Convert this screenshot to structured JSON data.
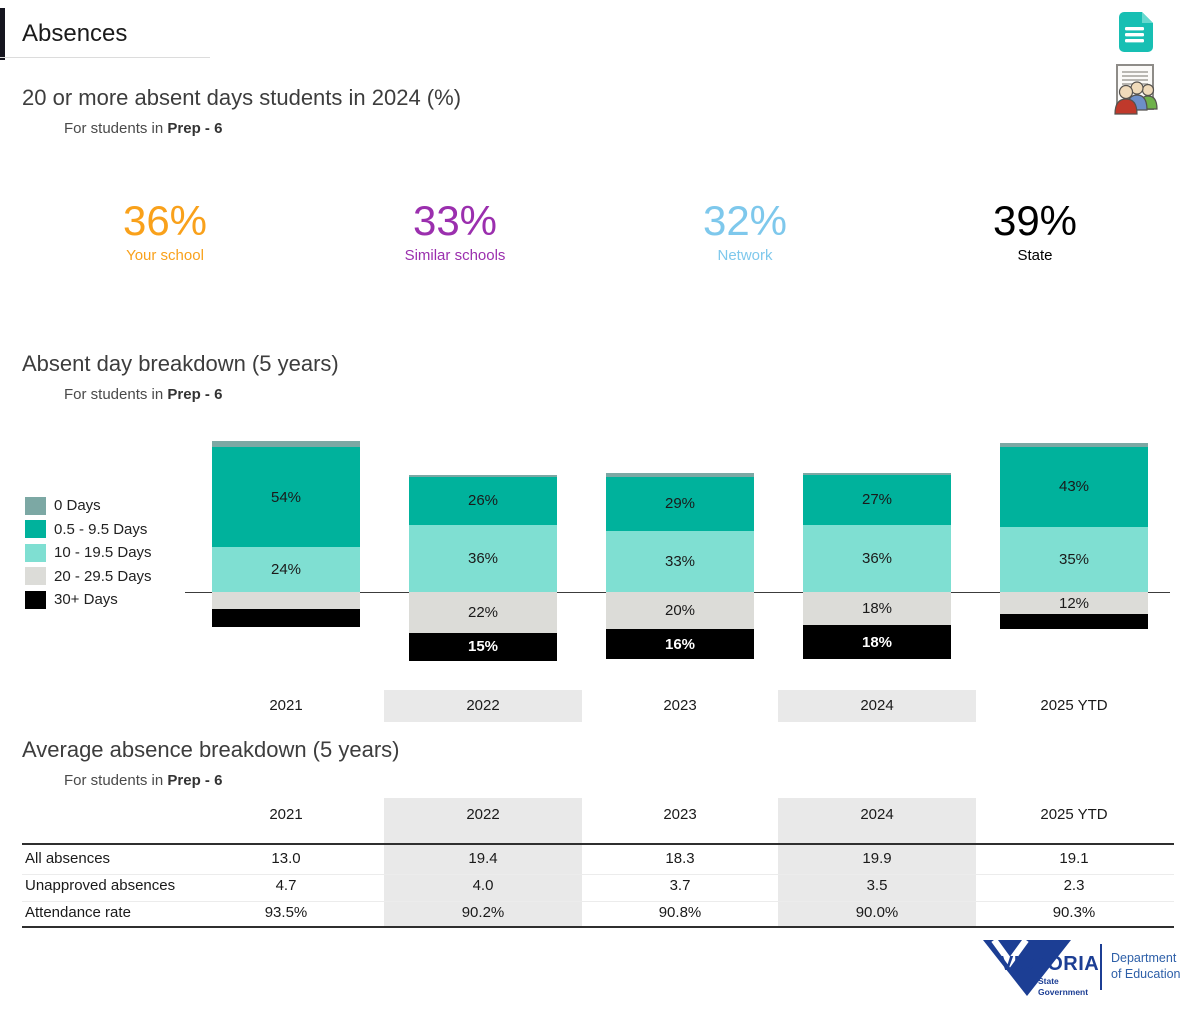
{
  "page": {
    "title": "Absences"
  },
  "icons": {
    "report_icon": "teal-document-icon",
    "cohort_icon": "report-with-people-icon"
  },
  "section1": {
    "title": "20 or more absent days students in 2024 (%)",
    "subtitle_prefix": "For students in",
    "subtitle_bold": "Prep - 6",
    "stats": [
      {
        "value": "36%",
        "label": "Your school",
        "color": "#F9A11B"
      },
      {
        "value": "33%",
        "label": "Similar schools",
        "color": "#9B2FAE"
      },
      {
        "value": "32%",
        "label": "Network",
        "color": "#7EC8EC"
      },
      {
        "value": "39%",
        "label": "State",
        "color": "#000000"
      }
    ]
  },
  "section2": {
    "title": "Absent day breakdown (5 years)",
    "subtitle_prefix": "For students in",
    "subtitle_bold": "Prep - 6"
  },
  "section3": {
    "title": "Average absence breakdown (5 years)",
    "subtitle_prefix": "For students in",
    "subtitle_bold": "Prep - 6"
  },
  "chart_data": [
    {
      "type": "bar",
      "stacked": true,
      "unit": "%",
      "title": "Absent day breakdown (5 years)",
      "subtitle": "For students in Prep - 6",
      "categories": [
        "2021",
        "2022",
        "2023",
        "2024",
        "2025 YTD"
      ],
      "highlighted_categories": [
        "2022",
        "2024"
      ],
      "legend_position": "left",
      "buckets": [
        "0 Days",
        "0.5 - 9.5 Days",
        "10 - 19.5 Days",
        "20 - 29.5 Days",
        "30+ Days"
      ],
      "bucket_colors": {
        "0 Days": "#7CA8A4",
        "0.5 - 9.5 Days": "#00B29C",
        "10 - 19.5 Days": "#7FDFD2",
        "20 - 29.5 Days": "#DCDCD8",
        "30+ Days": "#000000"
      },
      "series": [
        {
          "name": "0 Days",
          "values": [
            3,
            1,
            2,
            1,
            2
          ],
          "labels": [
            "",
            "",
            "",
            "",
            ""
          ]
        },
        {
          "name": "0.5 - 9.5 Days",
          "values": [
            54,
            26,
            29,
            27,
            43
          ],
          "labels": [
            "54%",
            "26%",
            "29%",
            "27%",
            "43%"
          ]
        },
        {
          "name": "10 - 19.5 Days",
          "values": [
            24,
            36,
            33,
            36,
            35
          ],
          "labels": [
            "24%",
            "36%",
            "33%",
            "36%",
            "35%"
          ]
        },
        {
          "name": "20 - 29.5 Days",
          "values": [
            9,
            22,
            20,
            18,
            12
          ],
          "labels": [
            "",
            "22%",
            "20%",
            "18%",
            "12%"
          ]
        },
        {
          "name": "30+ Days",
          "values": [
            10,
            15,
            16,
            18,
            8
          ],
          "labels": [
            "",
            "15%",
            "16%",
            "18%",
            ""
          ]
        }
      ],
      "note": "Unlabeled segment values estimated from bar geometry; buckets under 20 days are drawn above the axis line, 20+ day buckets below it"
    },
    {
      "type": "table",
      "title": "Average absence breakdown (5 years)",
      "columns": [
        "2021",
        "2022",
        "2023",
        "2024",
        "2025 YTD"
      ],
      "highlighted_columns": [
        "2022",
        "2024"
      ],
      "rows": [
        {
          "label": "All absences",
          "values": [
            "13.0",
            "19.4",
            "18.3",
            "19.9",
            "19.1"
          ]
        },
        {
          "label": "Unapproved absences",
          "values": [
            "4.7",
            "4.0",
            "3.7",
            "3.5",
            "2.3"
          ]
        },
        {
          "label": "Attendance rate",
          "values": [
            "93.5%",
            "90.2%",
            "90.8%",
            "90.0%",
            "90.3%"
          ]
        }
      ]
    }
  ],
  "footer": {
    "logo_primary": "VICTORIA",
    "logo_secondary_line1": "State",
    "logo_secondary_line2": "Government",
    "department_line1": "Department",
    "department_line2": "of Education",
    "brand_blue": "#1C3E94"
  }
}
